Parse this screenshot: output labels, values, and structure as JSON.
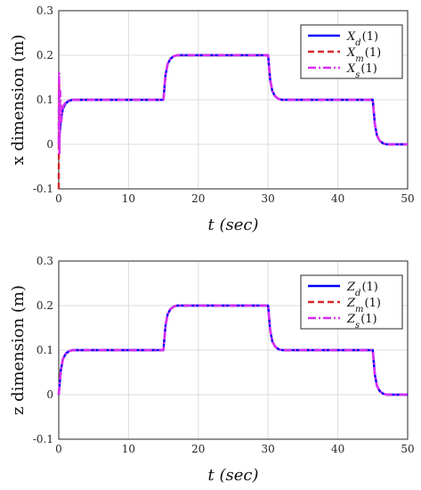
{
  "chart_data": [
    {
      "type": "line",
      "xlabel": "t (sec)",
      "ylabel": "x dimension (m)",
      "xlim": [
        0,
        50
      ],
      "ylim": [
        -0.1,
        0.3
      ],
      "xticks": [
        "0",
        "10",
        "20",
        "30",
        "40",
        "50"
      ],
      "yticks": [
        "-0.1",
        "0",
        "0.1",
        "0.2",
        "0.3"
      ],
      "grid": true,
      "legend_position": "top-right",
      "series": [
        {
          "name": "X_d(1)",
          "label_main": "X",
          "label_sub": "d",
          "label_suffix": "(1)",
          "color": "#0000ff",
          "style": "solid",
          "x": [
            0,
            0.3,
            0.6,
            1,
            1.5,
            2,
            15,
            15.3,
            15.6,
            16,
            16.5,
            17,
            30,
            30.3,
            30.6,
            31,
            31.5,
            32,
            45,
            45.3,
            45.6,
            46,
            46.5,
            47,
            50
          ],
          "y": [
            0,
            0.055,
            0.08,
            0.092,
            0.098,
            0.1,
            0.1,
            0.155,
            0.18,
            0.192,
            0.198,
            0.2,
            0.2,
            0.145,
            0.12,
            0.108,
            0.102,
            0.1,
            0.1,
            0.045,
            0.02,
            0.008,
            0.002,
            0,
            0
          ]
        },
        {
          "name": "X_m(1)",
          "label_main": "X",
          "label_sub": "m",
          "label_suffix": "(1)",
          "color": "#d62728",
          "style": "dashed",
          "x": [
            0,
            0.05,
            0.15,
            0.3,
            0.6,
            1,
            1.5,
            2,
            15,
            15.3,
            15.6,
            16,
            16.5,
            17,
            30,
            30.3,
            30.6,
            31,
            31.5,
            32,
            45,
            45.3,
            45.6,
            46,
            46.5,
            47,
            50
          ],
          "y": [
            -0.1,
            0.14,
            0.03,
            0.06,
            0.082,
            0.093,
            0.098,
            0.1,
            0.1,
            0.155,
            0.18,
            0.192,
            0.198,
            0.2,
            0.2,
            0.145,
            0.12,
            0.108,
            0.102,
            0.1,
            0.1,
            0.045,
            0.02,
            0.008,
            0.002,
            0,
            0
          ]
        },
        {
          "name": "X_s(1)",
          "label_main": "X",
          "label_sub": "s",
          "label_suffix": "(1)",
          "color": "#d62ff0",
          "style": "dashdot",
          "x": [
            0,
            0.05,
            0.1,
            0.2,
            0.35,
            0.6,
            1,
            1.5,
            2,
            15,
            15.3,
            15.6,
            16,
            16.5,
            17,
            30,
            30.3,
            30.6,
            31,
            31.5,
            32,
            45,
            45.3,
            45.6,
            46,
            46.5,
            47,
            50
          ],
          "y": [
            0,
            0.16,
            -0.02,
            0.12,
            0.05,
            0.085,
            0.094,
            0.099,
            0.1,
            0.1,
            0.155,
            0.18,
            0.192,
            0.198,
            0.2,
            0.2,
            0.145,
            0.12,
            0.108,
            0.102,
            0.1,
            0.1,
            0.045,
            0.02,
            0.008,
            0.002,
            0,
            0
          ]
        }
      ]
    },
    {
      "type": "line",
      "xlabel": "t (sec)",
      "ylabel": "z dimension (m)",
      "xlim": [
        0,
        50
      ],
      "ylim": [
        -0.1,
        0.3
      ],
      "xticks": [
        "0",
        "10",
        "20",
        "30",
        "40",
        "50"
      ],
      "yticks": [
        "-0.1",
        "0",
        "0.1",
        "0.2",
        "0.3"
      ],
      "grid": true,
      "legend_position": "top-right",
      "series": [
        {
          "name": "Z_d(1)",
          "label_main": "Z",
          "label_sub": "d",
          "label_suffix": "(1)",
          "color": "#0000ff",
          "style": "solid",
          "x": [
            0,
            0.3,
            0.6,
            1,
            1.5,
            2,
            15,
            15.3,
            15.6,
            16,
            16.5,
            17,
            30,
            30.3,
            30.6,
            31,
            31.5,
            32,
            45,
            45.3,
            45.6,
            46,
            46.5,
            47,
            50
          ],
          "y": [
            0,
            0.055,
            0.08,
            0.092,
            0.098,
            0.1,
            0.1,
            0.155,
            0.18,
            0.192,
            0.198,
            0.2,
            0.2,
            0.145,
            0.12,
            0.108,
            0.102,
            0.1,
            0.1,
            0.045,
            0.02,
            0.008,
            0.002,
            0,
            0
          ]
        },
        {
          "name": "Z_m(1)",
          "label_main": "Z",
          "label_sub": "m",
          "label_suffix": "(1)",
          "color": "#d62728",
          "style": "dashed",
          "x": [
            0,
            0.3,
            0.6,
            1,
            1.5,
            2,
            15,
            15.3,
            15.6,
            16,
            16.5,
            17,
            30,
            30.3,
            30.6,
            31,
            31.5,
            32,
            45,
            45.3,
            45.6,
            46,
            46.5,
            47,
            50
          ],
          "y": [
            0,
            0.055,
            0.08,
            0.092,
            0.098,
            0.1,
            0.1,
            0.155,
            0.18,
            0.192,
            0.198,
            0.2,
            0.2,
            0.145,
            0.12,
            0.108,
            0.102,
            0.1,
            0.1,
            0.045,
            0.02,
            0.008,
            0.002,
            0,
            0
          ]
        },
        {
          "name": "Z_s(1)",
          "label_main": "Z",
          "label_sub": "s",
          "label_suffix": "(1)",
          "color": "#d62ff0",
          "style": "dashdot",
          "x": [
            0,
            0.3,
            0.6,
            1,
            1.5,
            2,
            15,
            15.3,
            15.6,
            16,
            16.5,
            17,
            30,
            30.3,
            30.6,
            31,
            31.5,
            32,
            45,
            45.3,
            45.6,
            46,
            46.5,
            47,
            50
          ],
          "y": [
            0,
            0.055,
            0.08,
            0.092,
            0.098,
            0.1,
            0.1,
            0.155,
            0.18,
            0.192,
            0.198,
            0.2,
            0.2,
            0.145,
            0.12,
            0.108,
            0.102,
            0.1,
            0.1,
            0.045,
            0.02,
            0.008,
            0.002,
            0,
            0
          ]
        }
      ]
    }
  ]
}
